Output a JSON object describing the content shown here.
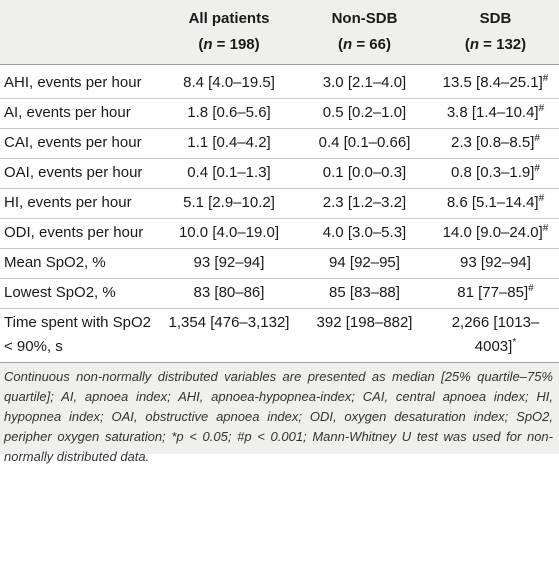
{
  "header": {
    "col1_title": "All patients",
    "col1_n": "(n = 198)",
    "col2_title": "Non-SDB",
    "col2_n": "(n = 66)",
    "col3_title": "SDB",
    "col3_n": "(n = 132)"
  },
  "rows": [
    {
      "label": "AHI, events per hour",
      "all": "8.4 [4.0–19.5]",
      "non": "3.0 [2.1–4.0]",
      "sdb": "13.5 [8.4–25.1]",
      "sdb_mark": "#"
    },
    {
      "label": "AI, events per hour",
      "all": "1.8 [0.6–5.6]",
      "non": "0.5 [0.2–1.0]",
      "sdb": "3.8 [1.4–10.4]",
      "sdb_mark": "#"
    },
    {
      "label": "CAI, events per hour",
      "all": "1.1 [0.4–4.2]",
      "non": "0.4 [0.1–0.66]",
      "sdb": "2.3 [0.8–8.5]",
      "sdb_mark": "#"
    },
    {
      "label": "OAI, events per hour",
      "all": "0.4 [0.1–1.3]",
      "non": "0.1 [0.0–0.3]",
      "sdb": "0.8 [0.3–1.9]",
      "sdb_mark": "#"
    },
    {
      "label": "HI, events per hour",
      "all": "5.1 [2.9–10.2]",
      "non": "2.3 [1.2–3.2]",
      "sdb": "8.6 [5.1–14.4]",
      "sdb_mark": "#"
    },
    {
      "label": "ODI, events per hour",
      "all": "10.0 [4.0–19.0]",
      "non": "4.0 [3.0–5.3]",
      "sdb": "14.0 [9.0–24.0]",
      "sdb_mark": "#"
    },
    {
      "label": "Mean SpO2, %",
      "all": "93 [92–94]",
      "non": "94 [92–95]",
      "sdb": "93 [92–94]",
      "sdb_mark": ""
    },
    {
      "label": "Lowest SpO2, %",
      "all": "83 [80–86]",
      "non": "85 [83–88]",
      "sdb": "81 [77–85]",
      "sdb_mark": "#"
    },
    {
      "label": "Time spent with SpO2 < 90%, s",
      "all": "1,354 [476–3,132]",
      "non": "392 [198–882]",
      "sdb": "2,266 [1013–4003]",
      "sdb_mark": "*"
    }
  ],
  "footnote": "Continuous non-normally distributed variables are presented as median [25% quartile–75% quartile]; AI, apnoea index; AHI, apnoea-hypopnea-index; CAI, central apnoea index; HI, hypopnea index; OAI, obstructive apnoea index; ODI, oxygen desaturation index; SpO2, peripher oxygen saturation; *p < 0.05; #p < 0.001; Mann-Whitney U test was used for non-normally distributed data."
}
